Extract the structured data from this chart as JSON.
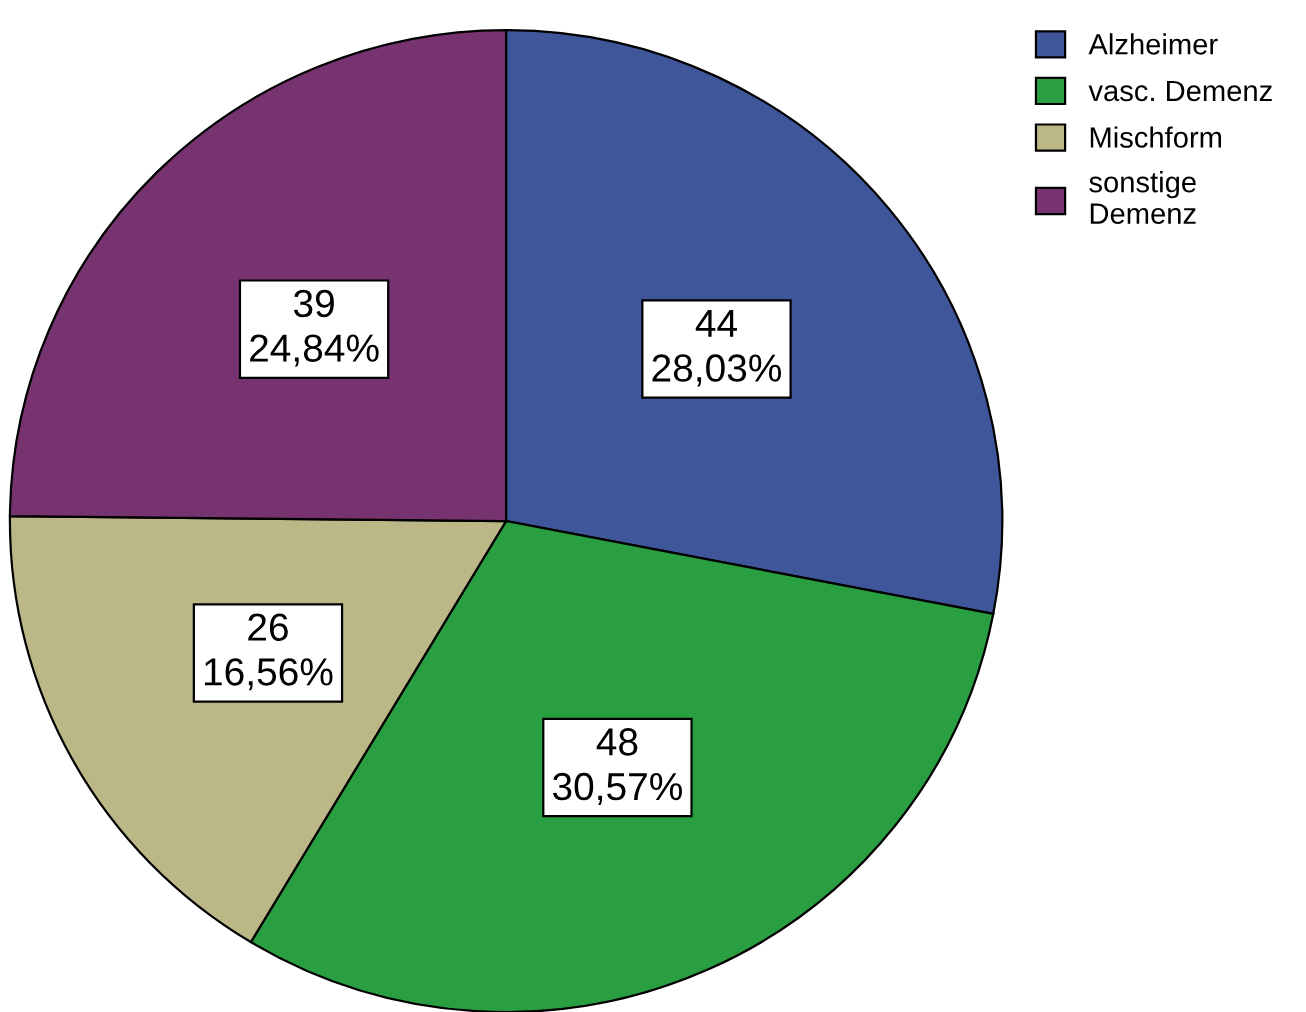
{
  "chart_data": {
    "type": "pie",
    "categories": [
      "Alzheimer",
      "vasc. Demenz",
      "Mischform",
      "sonstige\nDemenz"
    ],
    "values": [
      44,
      48,
      26,
      39
    ],
    "colors": [
      "#3f569a",
      "#2a9f41",
      "#bcb786",
      "#77336f"
    ],
    "value_labels": [
      "44\n28,03%",
      "48\n30,57%",
      "26\n16,56%",
      "39\n24,84%"
    ],
    "legend": "top right"
  }
}
